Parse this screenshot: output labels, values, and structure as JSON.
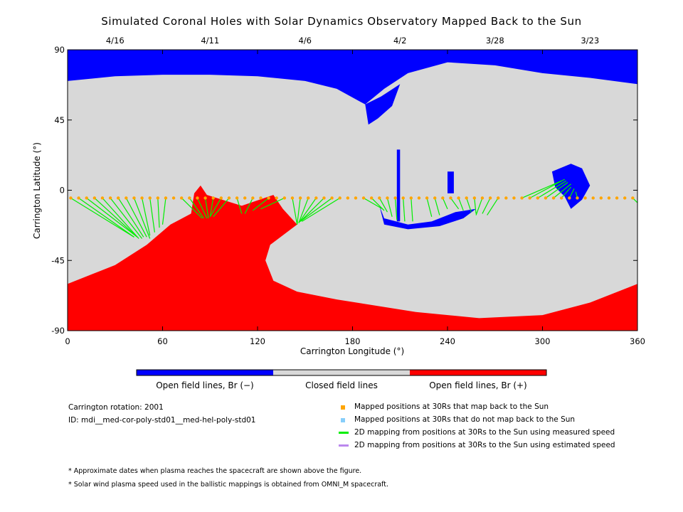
{
  "title": "Simulated Coronal Holes with Solar Dynamics Observatory Mapped Back to the Sun",
  "colors": {
    "open_negative": "#0000ff",
    "closed": "#d8d8d8",
    "open_positive": "#ff0000",
    "mapped_point": "#ffa500",
    "unmapped_point": "#87cefa",
    "measured_speed_line": "#00ee00",
    "estimated_speed_line": "#bb88ee"
  },
  "chart_data": {
    "type": "heatmap",
    "xlabel": "Carrington Longitude (°)",
    "ylabel": "Carrington Latitude (°)",
    "xlim": [
      0,
      360
    ],
    "ylim": [
      -90,
      90
    ],
    "x_ticks": [
      "0",
      "60",
      "120",
      "180",
      "240",
      "300",
      "360"
    ],
    "x_tick_values": [
      0,
      60,
      120,
      180,
      240,
      300,
      360
    ],
    "y_ticks": [
      "90",
      "45",
      "0",
      "-45",
      "-90"
    ],
    "y_tick_values": [
      90,
      45,
      0,
      -45,
      -90
    ],
    "top_date_ticks": [
      {
        "label": "4/16",
        "lon": 30
      },
      {
        "label": "4/11",
        "lon": 90
      },
      {
        "label": "4/6",
        "lon": 150
      },
      {
        "label": "4/2",
        "lon": 210
      },
      {
        "label": "3/28",
        "lon": 270
      },
      {
        "label": "3/23",
        "lon": 330
      }
    ],
    "regions": [
      {
        "polarity": "negative",
        "lon_lat": [
          [
            0,
            90
          ],
          [
            360,
            90
          ],
          [
            360,
            68
          ],
          [
            330,
            72
          ],
          [
            300,
            75
          ],
          [
            270,
            80
          ],
          [
            240,
            82
          ],
          [
            215,
            75
          ],
          [
            200,
            65
          ],
          [
            188,
            55
          ],
          [
            170,
            65
          ],
          [
            150,
            70
          ],
          [
            120,
            73
          ],
          [
            90,
            74
          ],
          [
            60,
            74
          ],
          [
            30,
            73
          ],
          [
            0,
            70
          ]
        ]
      },
      {
        "polarity": "negative",
        "lon_lat": [
          [
            188,
            55
          ],
          [
            198,
            60
          ],
          [
            210,
            68
          ],
          [
            205,
            54
          ],
          [
            196,
            46
          ],
          [
            190,
            42
          ]
        ]
      },
      {
        "polarity": "negative",
        "lon_lat": [
          [
            197,
            -10
          ],
          [
            200,
            -18
          ],
          [
            215,
            -22
          ],
          [
            230,
            -20
          ],
          [
            245,
            -14
          ],
          [
            258,
            -12
          ],
          [
            250,
            -18
          ],
          [
            235,
            -23
          ],
          [
            215,
            -25
          ],
          [
            200,
            -22
          ]
        ]
      },
      {
        "polarity": "negative",
        "lon_lat": [
          [
            208,
            26
          ],
          [
            210,
            26
          ],
          [
            210,
            -20
          ],
          [
            208,
            -20
          ]
        ]
      },
      {
        "polarity": "negative",
        "lon_lat": [
          [
            240,
            12
          ],
          [
            244,
            12
          ],
          [
            244,
            -2
          ],
          [
            240,
            -2
          ]
        ]
      },
      {
        "polarity": "negative",
        "lon_lat": [
          [
            306,
            12
          ],
          [
            318,
            17
          ],
          [
            325,
            14
          ],
          [
            330,
            3
          ],
          [
            325,
            -6
          ],
          [
            318,
            -12
          ],
          [
            314,
            -4
          ],
          [
            308,
            2
          ]
        ]
      },
      {
        "polarity": "positive",
        "lon_lat": [
          [
            0,
            -60
          ],
          [
            30,
            -48
          ],
          [
            50,
            -35
          ],
          [
            65,
            -22
          ],
          [
            78,
            -15
          ],
          [
            80,
            -2
          ],
          [
            84,
            3
          ],
          [
            88,
            -3
          ],
          [
            110,
            -10
          ],
          [
            130,
            -3
          ],
          [
            136,
            -12
          ],
          [
            145,
            -22
          ],
          [
            128,
            -35
          ],
          [
            125,
            -45
          ],
          [
            130,
            -58
          ],
          [
            145,
            -65
          ],
          [
            170,
            -70
          ],
          [
            220,
            -78
          ],
          [
            260,
            -82
          ],
          [
            300,
            -80
          ],
          [
            330,
            -72
          ],
          [
            360,
            -60
          ],
          [
            360,
            -90
          ],
          [
            0,
            -90
          ]
        ]
      }
    ],
    "mapped_positions": {
      "latitude": -5,
      "longitudes": [
        2,
        7,
        12,
        17,
        22,
        27,
        32,
        37,
        42,
        47,
        52,
        57,
        62,
        67,
        72,
        77,
        82,
        87,
        92,
        97,
        102,
        107,
        112,
        117,
        122,
        127,
        132,
        137,
        142,
        147,
        152,
        157,
        162,
        167,
        172,
        177,
        182,
        187,
        192,
        197,
        202,
        207,
        212,
        217,
        222,
        227,
        232,
        237,
        242,
        247,
        252,
        257,
        262,
        267,
        272,
        277,
        282,
        287,
        292,
        297,
        302,
        307,
        312,
        317,
        322,
        327,
        332,
        337,
        342,
        347,
        352,
        357
      ]
    },
    "mapping_lines": [
      {
        "from": [
          2,
          -5
        ],
        "to": [
          42,
          -30
        ]
      },
      {
        "from": [
          7,
          -5
        ],
        "to": [
          42,
          -30
        ]
      },
      {
        "from": [
          12,
          -5
        ],
        "to": [
          44,
          -30
        ]
      },
      {
        "from": [
          17,
          -5
        ],
        "to": [
          44,
          -30
        ]
      },
      {
        "from": [
          22,
          -5
        ],
        "to": [
          45,
          -31
        ]
      },
      {
        "from": [
          27,
          -5
        ],
        "to": [
          47,
          -31
        ]
      },
      {
        "from": [
          32,
          -5
        ],
        "to": [
          48,
          -30
        ]
      },
      {
        "from": [
          37,
          -5
        ],
        "to": [
          50,
          -30
        ]
      },
      {
        "from": [
          42,
          -5
        ],
        "to": [
          52,
          -31
        ]
      },
      {
        "from": [
          47,
          -5
        ],
        "to": [
          52,
          -29
        ]
      },
      {
        "from": [
          52,
          -5
        ],
        "to": [
          55,
          -27
        ]
      },
      {
        "from": [
          57,
          -5
        ],
        "to": [
          58,
          -24
        ]
      },
      {
        "from": [
          62,
          -5
        ],
        "to": [
          60,
          -22
        ]
      },
      {
        "from": [
          72,
          -5
        ],
        "to": [
          85,
          -18
        ]
      },
      {
        "from": [
          77,
          -5
        ],
        "to": [
          86,
          -18
        ]
      },
      {
        "from": [
          82,
          -5
        ],
        "to": [
          88,
          -18
        ]
      },
      {
        "from": [
          87,
          -5
        ],
        "to": [
          89,
          -18
        ]
      },
      {
        "from": [
          92,
          -5
        ],
        "to": [
          90,
          -17
        ]
      },
      {
        "from": [
          97,
          -5
        ],
        "to": [
          90,
          -17
        ]
      },
      {
        "from": [
          102,
          -5
        ],
        "to": [
          92,
          -17
        ]
      },
      {
        "from": [
          107,
          -5
        ],
        "to": [
          110,
          -15
        ]
      },
      {
        "from": [
          117,
          -5
        ],
        "to": [
          112,
          -15
        ]
      },
      {
        "from": [
          127,
          -5
        ],
        "to": [
          117,
          -13
        ]
      },
      {
        "from": [
          137,
          -5
        ],
        "to": [
          122,
          -12
        ]
      },
      {
        "from": [
          142,
          -5
        ],
        "to": [
          145,
          -22
        ]
      },
      {
        "from": [
          147,
          -5
        ],
        "to": [
          145,
          -22
        ]
      },
      {
        "from": [
          152,
          -5
        ],
        "to": [
          146,
          -21
        ]
      },
      {
        "from": [
          157,
          -5
        ],
        "to": [
          146,
          -21
        ]
      },
      {
        "from": [
          162,
          -5
        ],
        "to": [
          147,
          -20
        ]
      },
      {
        "from": [
          167,
          -5
        ],
        "to": [
          147,
          -20
        ]
      },
      {
        "from": [
          172,
          -5
        ],
        "to": [
          148,
          -20
        ]
      },
      {
        "from": [
          187,
          -5
        ],
        "to": [
          199,
          -12
        ]
      },
      {
        "from": [
          192,
          -5
        ],
        "to": [
          200,
          -13
        ]
      },
      {
        "from": [
          197,
          -5
        ],
        "to": [
          202,
          -14
        ]
      },
      {
        "from": [
          202,
          -5
        ],
        "to": [
          205,
          -17
        ]
      },
      {
        "from": [
          207,
          -5
        ],
        "to": [
          208,
          -19
        ]
      },
      {
        "from": [
          212,
          -5
        ],
        "to": [
          213,
          -20
        ]
      },
      {
        "from": [
          217,
          -5
        ],
        "to": [
          218,
          -20
        ]
      },
      {
        "from": [
          227,
          -5
        ],
        "to": [
          230,
          -17
        ]
      },
      {
        "from": [
          232,
          -5
        ],
        "to": [
          235,
          -16
        ]
      },
      {
        "from": [
          237,
          -5
        ],
        "to": [
          240,
          -12
        ]
      },
      {
        "from": [
          242,
          -5
        ],
        "to": [
          247,
          -12
        ]
      },
      {
        "from": [
          247,
          -5
        ],
        "to": [
          250,
          -13
        ]
      },
      {
        "from": [
          252,
          -5
        ],
        "to": [
          255,
          -14
        ]
      },
      {
        "from": [
          257,
          -5
        ],
        "to": [
          258,
          -15
        ]
      },
      {
        "from": [
          262,
          -5
        ],
        "to": [
          258,
          -16
        ]
      },
      {
        "from": [
          267,
          -5
        ],
        "to": [
          262,
          -15
        ]
      },
      {
        "from": [
          272,
          -5
        ],
        "to": [
          265,
          -16
        ]
      },
      {
        "from": [
          287,
          -5
        ],
        "to": [
          312,
          6
        ]
      },
      {
        "from": [
          292,
          -5
        ],
        "to": [
          314,
          7
        ]
      },
      {
        "from": [
          297,
          -5
        ],
        "to": [
          315,
          6
        ]
      },
      {
        "from": [
          302,
          -5
        ],
        "to": [
          316,
          5
        ]
      },
      {
        "from": [
          307,
          -5
        ],
        "to": [
          318,
          4
        ]
      },
      {
        "from": [
          312,
          -5
        ],
        "to": [
          318,
          2
        ]
      },
      {
        "from": [
          317,
          -5
        ],
        "to": [
          320,
          1
        ]
      },
      {
        "from": [
          322,
          -5
        ],
        "to": [
          321,
          -1
        ]
      },
      {
        "from": [
          357,
          -5
        ],
        "to": [
          360,
          -8
        ]
      }
    ]
  },
  "colorbar": {
    "labels": [
      "Open field lines, Br (−)",
      "Closed field lines",
      "Open field lines, Br (+)"
    ]
  },
  "info": {
    "rotation": "Carrington rotation: 2001",
    "id": "ID: mdi__med-cor-poly-std01__med-hel-poly-std01"
  },
  "legend": [
    {
      "label": "Mapped positions at 30Rs that map back to the Sun",
      "kind": "square",
      "color_key": "mapped_point"
    },
    {
      "label": "Mapped positions at 30Rs that do not map back to the Sun",
      "kind": "square",
      "color_key": "unmapped_point"
    },
    {
      "label": "2D mapping from positions at 30Rs to the Sun using measured speed",
      "kind": "line",
      "color_key": "measured_speed_line"
    },
    {
      "label": "2D mapping from positions at 30Rs to the Sun using estimated speed",
      "kind": "line",
      "color_key": "estimated_speed_line"
    }
  ],
  "notes": [
    "* Approximate dates when plasma reaches the spacecraft are shown above the figure.",
    "* Solar wind plasma speed used in the ballistic mappings is obtained from OMNI_M spacecraft."
  ]
}
